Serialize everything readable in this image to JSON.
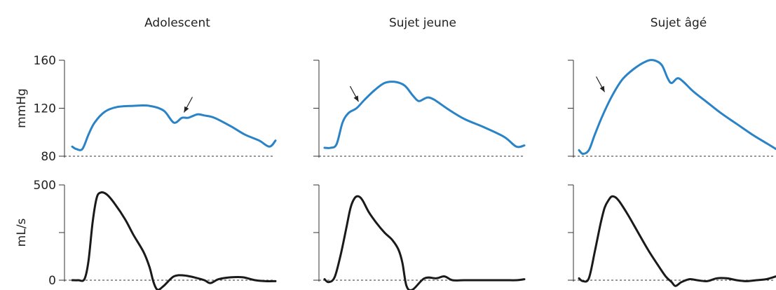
{
  "chart_data": {
    "type": "line",
    "columns": [
      "Adolescent",
      "Sujet jeune",
      "Sujet âgé"
    ],
    "pressure": {
      "ylabel": "mmHg",
      "yticks": [
        80,
        120,
        160
      ],
      "ylim": [
        80,
        160
      ],
      "baseline": 80,
      "series": [
        {
          "x": [
            0,
            0.02,
            0.05,
            0.08,
            0.11,
            0.16,
            0.22,
            0.3,
            0.38,
            0.45,
            0.5,
            0.54,
            0.57,
            0.6,
            0.62,
            0.65,
            0.7,
            0.78,
            0.85,
            0.92,
            0.97,
            1.0
          ],
          "y": [
            88,
            86,
            86,
            98,
            108,
            117,
            121,
            122,
            122,
            118,
            108,
            112,
            112,
            114,
            115,
            114,
            112,
            105,
            98,
            93,
            88,
            93
          ],
          "arrow": {
            "x": 0.55,
            "y": 113
          }
        },
        {
          "x": [
            0,
            0.03,
            0.06,
            0.09,
            0.12,
            0.16,
            0.2,
            0.25,
            0.3,
            0.35,
            0.4,
            0.44,
            0.47,
            0.5,
            0.52,
            0.55,
            0.62,
            0.7,
            0.8,
            0.9,
            0.96,
            1.0
          ],
          "y": [
            87,
            87,
            90,
            108,
            116,
            120,
            127,
            135,
            141,
            142,
            139,
            131,
            126,
            128,
            129,
            127,
            119,
            111,
            104,
            96,
            88,
            89
          ],
          "arrow": {
            "x": 0.17,
            "y": 122
          }
        },
        {
          "x": [
            0,
            0.02,
            0.05,
            0.08,
            0.12,
            0.17,
            0.22,
            0.28,
            0.34,
            0.38,
            0.42,
            0.45,
            0.47,
            0.5,
            0.53,
            0.58,
            0.65,
            0.72,
            0.8,
            0.88,
            0.95,
            1.0
          ],
          "y": [
            85,
            82,
            85,
            98,
            114,
            131,
            144,
            153,
            159,
            160,
            156,
            145,
            141,
            145,
            142,
            134,
            125,
            116,
            107,
            98,
            91,
            86
          ],
          "arrow": {
            "x": 0.13,
            "y": 130
          }
        }
      ]
    },
    "flow": {
      "ylabel": "mL/s",
      "yticks": [
        0,
        500
      ],
      "ylim": [
        0,
        500
      ],
      "baseline": 0,
      "series": [
        {
          "x": [
            0,
            0.03,
            0.06,
            0.08,
            0.1,
            0.12,
            0.14,
            0.17,
            0.21,
            0.26,
            0.3,
            0.35,
            0.38,
            0.4,
            0.42,
            0.45,
            0.5,
            0.55,
            0.6,
            0.65,
            0.68,
            0.72,
            0.78,
            0.84,
            0.9,
            0.95,
            1.0
          ],
          "y": [
            0,
            0,
            5,
            100,
            300,
            430,
            460,
            450,
            400,
            320,
            240,
            150,
            70,
            -10,
            -50,
            -30,
            20,
            25,
            15,
            0,
            -15,
            5,
            15,
            15,
            0,
            -5,
            -5
          ]
        },
        {
          "x": [
            0,
            0.02,
            0.05,
            0.08,
            0.11,
            0.13,
            0.15,
            0.17,
            0.19,
            0.22,
            0.26,
            0.3,
            0.34,
            0.37,
            0.39,
            0.41,
            0.44,
            0.5,
            0.56,
            0.6,
            0.64,
            0.7,
            0.8,
            0.9,
            0.96,
            1.0
          ],
          "y": [
            5,
            -10,
            15,
            130,
            280,
            380,
            430,
            440,
            420,
            360,
            300,
            250,
            210,
            160,
            90,
            -30,
            -50,
            10,
            10,
            20,
            0,
            0,
            0,
            0,
            0,
            5
          ]
        },
        {
          "x": [
            0,
            0.02,
            0.05,
            0.08,
            0.11,
            0.13,
            0.15,
            0.17,
            0.2,
            0.25,
            0.3,
            0.35,
            0.4,
            0.44,
            0.47,
            0.49,
            0.52,
            0.56,
            0.6,
            0.65,
            0.7,
            0.75,
            0.8,
            0.85,
            0.9,
            0.95,
            1.0
          ],
          "y": [
            10,
            -5,
            10,
            150,
            300,
            380,
            420,
            440,
            420,
            340,
            250,
            160,
            80,
            20,
            -10,
            -30,
            -10,
            5,
            0,
            -5,
            10,
            10,
            0,
            -5,
            0,
            5,
            20
          ]
        }
      ]
    }
  }
}
